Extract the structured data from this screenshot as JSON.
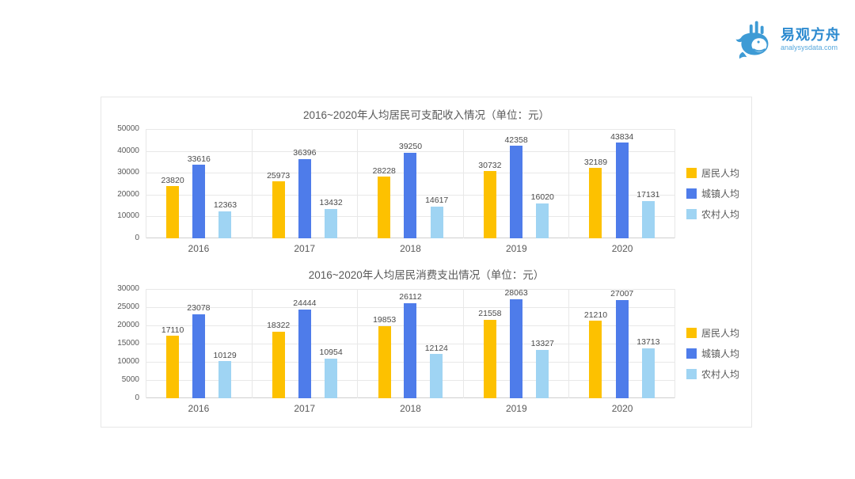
{
  "logo": {
    "brand": "易观方舟",
    "domain": "analysysdata.com",
    "icon": "whale-icon",
    "brand_color": "#2E8BD0"
  },
  "colors": {
    "resident": "#FDC100",
    "urban": "#4E7CEA",
    "rural": "#9FD4F3",
    "grid": "#E8E8E8"
  },
  "chart_data": [
    {
      "type": "bar",
      "title": "2016~2020年人均居民可支配收入情况（单位：元）",
      "categories": [
        "2016",
        "2017",
        "2018",
        "2019",
        "2020"
      ],
      "series": [
        {
          "name": "居民人均",
          "color": "#FDC100",
          "values": [
            23820,
            25973,
            28228,
            30732,
            32189
          ]
        },
        {
          "name": "城镇人均",
          "color": "#4E7CEA",
          "values": [
            33616,
            36396,
            39250,
            42358,
            43834
          ]
        },
        {
          "name": "农村人均",
          "color": "#9FD4F3",
          "values": [
            12363,
            13432,
            14617,
            16020,
            17131
          ]
        }
      ],
      "ylim": [
        0,
        50000
      ],
      "yticks": [
        50000,
        40000,
        30000,
        20000,
        10000,
        0
      ],
      "grid": true,
      "legend_position": "right",
      "xlabel": "",
      "ylabel": ""
    },
    {
      "type": "bar",
      "title": "2016~2020年人均居民消费支出情况（单位：元）",
      "categories": [
        "2016",
        "2017",
        "2018",
        "2019",
        "2020"
      ],
      "series": [
        {
          "name": "居民人均",
          "color": "#FDC100",
          "values": [
            17110,
            18322,
            19853,
            21558,
            21210
          ]
        },
        {
          "name": "城镇人均",
          "color": "#4E7CEA",
          "values": [
            23078,
            24444,
            26112,
            28063,
            27007
          ]
        },
        {
          "name": "农村人均",
          "color": "#9FD4F3",
          "values": [
            10129,
            10954,
            12124,
            13327,
            13713
          ]
        }
      ],
      "ylim": [
        0,
        30000
      ],
      "yticks": [
        30000,
        25000,
        20000,
        15000,
        10000,
        5000,
        0
      ],
      "grid": true,
      "legend_position": "right",
      "xlabel": "",
      "ylabel": ""
    }
  ]
}
